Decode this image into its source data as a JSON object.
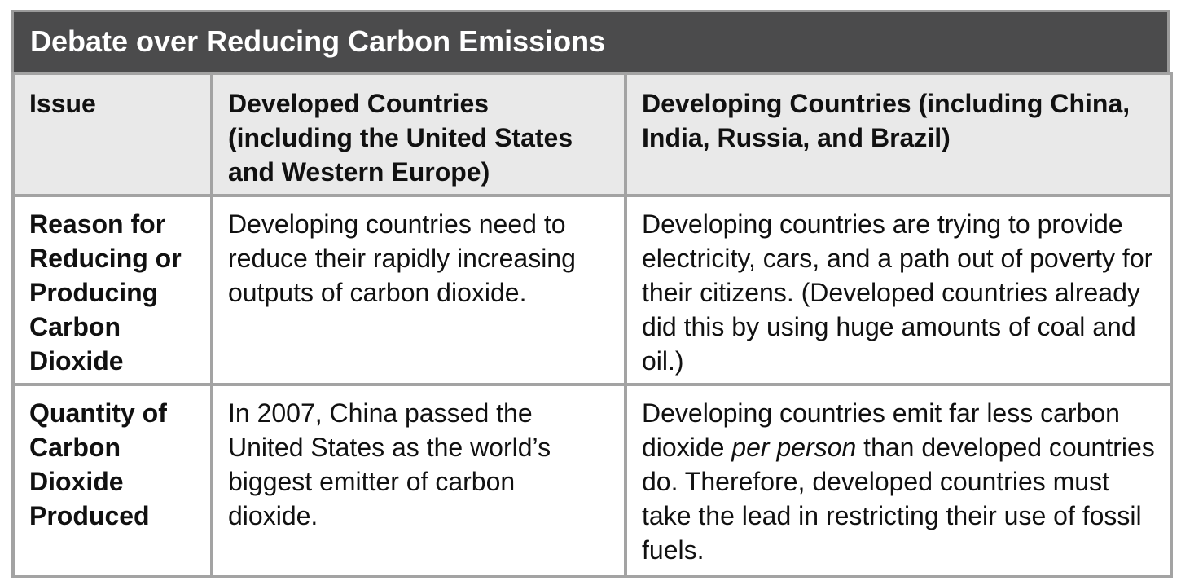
{
  "title": "Debate over Reducing Carbon Emissions",
  "table": {
    "header": [
      "Issue",
      "Developed Countries (including the United States and Western Europe)",
      "Developing Countries (including China, India, Russia, and Brazil)"
    ],
    "rows": [
      [
        "Reason for Reducing or Producing Carbon Dioxide",
        "Developing countries need to reduce their rapidly increasing outputs of carbon dioxide.",
        "Developing countries are trying to provide electricity, cars, and a path out of poverty for their citizens. (Developed countries already did this by using huge amounts of coal and oil.)"
      ],
      [
        "Quantity of Carbon Dioxide Produced",
        "In 2007, China passed the United States as the world’s biggest emitter of carbon dioxide.",
        [
          "Developing countries emit far less carbon dioxide ",
          "per person",
          " than developed countries do. Therefore, developed countries must take the lead in restricting their use of fossil fuels."
        ]
      ]
    ]
  }
}
